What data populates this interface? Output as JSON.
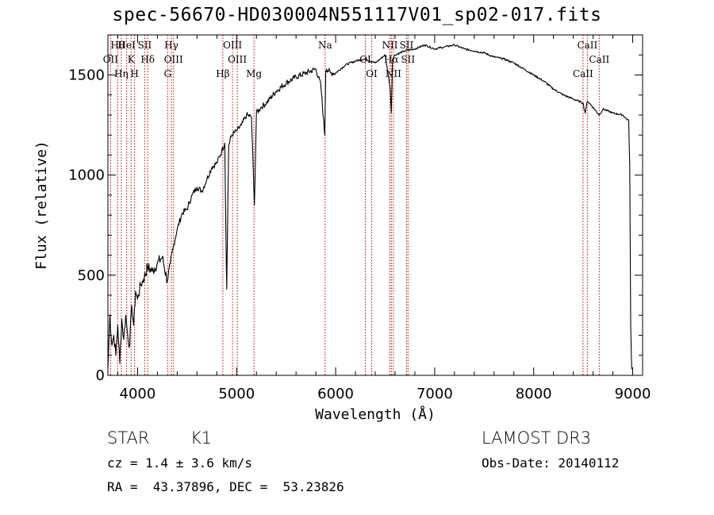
{
  "chart_data": {
    "type": "line",
    "title": "spec-56670-HD030004N551117V01_sp02-017.fits",
    "xlabel": "Wavelength (Å)",
    "ylabel": "Flux (relative)",
    "xlim": [
      3700,
      9100
    ],
    "ylim": [
      0,
      1700
    ],
    "x_ticks": [
      4000,
      5000,
      6000,
      7000,
      8000,
      9000
    ],
    "y_ticks": [
      0,
      500,
      1000,
      1500
    ],
    "series": [
      {
        "name": "flux",
        "x": [
          3700,
          3720,
          3740,
          3760,
          3780,
          3800,
          3820,
          3840,
          3860,
          3880,
          3900,
          3920,
          3940,
          3960,
          3980,
          4000,
          4030,
          4060,
          4100,
          4150,
          4200,
          4250,
          4300,
          4330,
          4360,
          4400,
          4450,
          4500,
          4550,
          4600,
          4650,
          4700,
          4750,
          4800,
          4850,
          4880,
          4900,
          4920,
          4950,
          5000,
          5050,
          5100,
          5150,
          5180,
          5200,
          5250,
          5300,
          5400,
          5500,
          5600,
          5700,
          5800,
          5850,
          5890,
          5900,
          5910,
          5950,
          6000,
          6100,
          6200,
          6300,
          6400,
          6500,
          6550,
          6563,
          6575,
          6600,
          6700,
          6800,
          6900,
          7000,
          7100,
          7200,
          7300,
          7400,
          7500,
          7600,
          7700,
          7800,
          7900,
          8000,
          8100,
          8200,
          8300,
          8400,
          8498,
          8520,
          8542,
          8580,
          8662,
          8700,
          8800,
          8900,
          8960,
          8970,
          8980,
          8990
        ],
        "values": [
          30,
          300,
          150,
          200,
          100,
          250,
          60,
          280,
          180,
          300,
          200,
          150,
          350,
          250,
          420,
          380,
          450,
          480,
          540,
          520,
          560,
          590,
          470,
          560,
          640,
          730,
          810,
          830,
          900,
          940,
          920,
          980,
          1040,
          1060,
          1120,
          1160,
          430,
          1150,
          1200,
          1220,
          1250,
          1300,
          1290,
          850,
          1310,
          1340,
          1360,
          1420,
          1460,
          1490,
          1510,
          1530,
          1450,
          1200,
          1520,
          1530,
          1510,
          1510,
          1550,
          1570,
          1580,
          1560,
          1600,
          1440,
          1310,
          1580,
          1600,
          1620,
          1630,
          1650,
          1630,
          1640,
          1650,
          1630,
          1620,
          1610,
          1590,
          1580,
          1560,
          1530,
          1500,
          1470,
          1430,
          1400,
          1380,
          1360,
          1310,
          1370,
          1350,
          1300,
          1330,
          1310,
          1300,
          1270,
          1050,
          250,
          30
        ]
      }
    ],
    "line_annotations": [
      {
        "label": "Hθ",
        "wavelength": 3798
      },
      {
        "label": "OII",
        "wavelength": 3727
      },
      {
        "label": "Hη",
        "wavelength": 3835
      },
      {
        "label": "HeI",
        "wavelength": 3889
      },
      {
        "label": "K",
        "wavelength": 3934
      },
      {
        "label": "H",
        "wavelength": 3969
      },
      {
        "label": "SII",
        "wavelength": 4072
      },
      {
        "label": "Hδ",
        "wavelength": 4102
      },
      {
        "label": "G",
        "wavelength": 4304
      },
      {
        "label": "Hγ",
        "wavelength": 4341
      },
      {
        "label": "OIII",
        "wavelength": 4363
      },
      {
        "label": "Hβ",
        "wavelength": 4861
      },
      {
        "label": "OIII",
        "wavelength": 4959
      },
      {
        "label": "OIII",
        "wavelength": 5007
      },
      {
        "label": "Mg",
        "wavelength": 5175
      },
      {
        "label": "Na",
        "wavelength": 5894
      },
      {
        "label": "OI",
        "wavelength": 6300
      },
      {
        "label": "OI",
        "wavelength": 6364
      },
      {
        "label": "NII",
        "wavelength": 6548
      },
      {
        "label": "Hα",
        "wavelength": 6563
      },
      {
        "label": "NII",
        "wavelength": 6583
      },
      {
        "label": "SII",
        "wavelength": 6716
      },
      {
        "label": "SII",
        "wavelength": 6731
      },
      {
        "label": "CaII",
        "wavelength": 8498
      },
      {
        "label": "CaII",
        "wavelength": 8542
      },
      {
        "label": "CaII",
        "wavelength": 8662
      }
    ],
    "colors": {
      "spectrum": "#000000",
      "lines": "#c00000",
      "labels": "#000000"
    }
  },
  "info": {
    "object_class": "STAR",
    "subclass": "K1",
    "cz": "cz = 1.4 ± 3.6 km/s",
    "coords": "RA =  43.37896, DEC =  53.23826",
    "survey": "LAMOST DR3",
    "obs_date": "Obs-Date: 20140112"
  }
}
